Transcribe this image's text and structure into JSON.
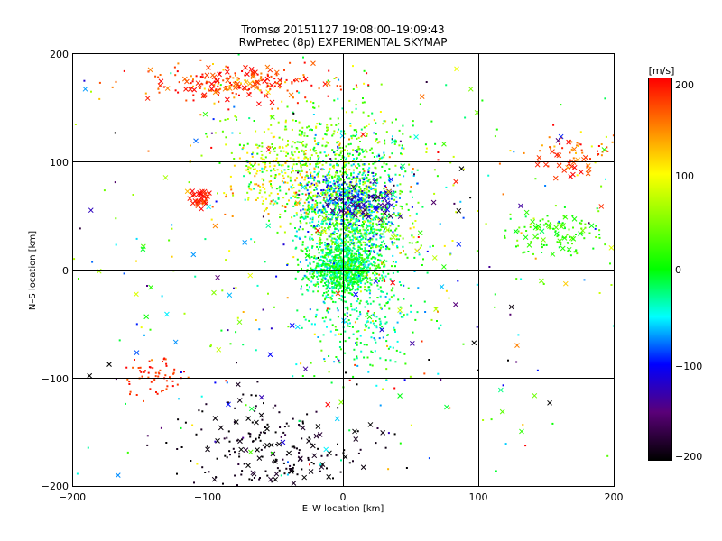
{
  "chart_data": {
    "type": "scatter",
    "title": "Tromsø 20151127 19:08:00–19:09:43",
    "subtitle": "RwPretec (8p) EXPERIMENTAL SKYMAP",
    "xlabel": "E–W location [km]",
    "ylabel": "N–S location [km]",
    "xlim": [
      -200,
      200
    ],
    "ylim": [
      -200,
      200
    ],
    "xticks": [
      "−200",
      "−100",
      "0",
      "100",
      "200"
    ],
    "yticks": [
      "200",
      "100",
      "0",
      "−100",
      "−200"
    ],
    "grid": true,
    "colorbar": {
      "label": "[m/s]",
      "range": [
        -200,
        200
      ],
      "ticks": [
        "200",
        "100",
        "0",
        "−100",
        "−200"
      ],
      "colormap": "rainbow (black → purple → blue → cyan → green → yellow → red)"
    },
    "markers": [
      "dot",
      "x"
    ],
    "clusters": [
      {
        "cx": 5,
        "cy": 45,
        "sx": 20,
        "sy": 35,
        "n": 1500,
        "v": 0,
        "vs": 45,
        "marker": "dot"
      },
      {
        "cx": 0,
        "cy": 0,
        "sx": 12,
        "sy": 10,
        "n": 700,
        "v": -10,
        "vs": 25,
        "marker": "dot"
      },
      {
        "cx": -20,
        "cy": 110,
        "sx": 35,
        "sy": 25,
        "n": 420,
        "v": 40,
        "vs": 45,
        "marker": "dot"
      },
      {
        "cx": 5,
        "cy": 65,
        "sx": 14,
        "sy": 12,
        "n": 260,
        "v": -90,
        "vs": 30,
        "marker": "dot"
      },
      {
        "cx": 15,
        "cy": -45,
        "sx": 20,
        "sy": 25,
        "n": 200,
        "v": -20,
        "vs": 30,
        "marker": "dot"
      },
      {
        "cx": -45,
        "cy": 85,
        "sx": 18,
        "sy": 15,
        "n": 150,
        "v": 110,
        "vs": 25,
        "marker": "dot"
      },
      {
        "cx": -80,
        "cy": 172,
        "sx": 35,
        "sy": 8,
        "n": 160,
        "v": 175,
        "vs": 30,
        "marker": "dot"
      },
      {
        "cx": -80,
        "cy": 172,
        "sx": 30,
        "sy": 8,
        "n": 70,
        "v": 180,
        "vs": 25,
        "marker": "x"
      },
      {
        "cx": -105,
        "cy": 68,
        "sx": 4,
        "sy": 5,
        "n": 30,
        "v": 190,
        "vs": 15,
        "marker": "x"
      },
      {
        "cx": -140,
        "cy": -100,
        "sx": 12,
        "sy": 10,
        "n": 60,
        "v": 185,
        "vs": 15,
        "marker": "dot"
      },
      {
        "cx": -55,
        "cy": -165,
        "sx": 35,
        "sy": 22,
        "n": 160,
        "v": -195,
        "vs": 10,
        "marker": "dot"
      },
      {
        "cx": -55,
        "cy": -165,
        "sx": 35,
        "sy": 22,
        "n": 55,
        "v": -195,
        "vs": 10,
        "marker": "x"
      },
      {
        "cx": 160,
        "cy": 35,
        "sx": 20,
        "sy": 10,
        "n": 90,
        "v": 20,
        "vs": 15,
        "marker": "dot"
      },
      {
        "cx": 160,
        "cy": 35,
        "sx": 18,
        "sy": 10,
        "n": 30,
        "v": 20,
        "vs": 15,
        "marker": "x"
      },
      {
        "cx": 170,
        "cy": 110,
        "sx": 18,
        "sy": 10,
        "n": 50,
        "v": 160,
        "vs": 40,
        "marker": "dot"
      },
      {
        "cx": 165,
        "cy": 100,
        "sx": 10,
        "sy": 8,
        "n": 25,
        "v": 180,
        "vs": 20,
        "marker": "x"
      },
      {
        "cx": 20,
        "cy": 62,
        "sx": 15,
        "sy": 10,
        "n": 40,
        "v": -150,
        "vs": 30,
        "marker": "x"
      },
      {
        "cx": 0,
        "cy": 0,
        "sx": 110,
        "sy": 110,
        "n": 380,
        "v": 0,
        "vs": 110,
        "marker": "dot"
      },
      {
        "cx": 0,
        "cy": 0,
        "sx": 110,
        "sy": 110,
        "n": 130,
        "v": 0,
        "vs": 120,
        "marker": "x"
      }
    ]
  }
}
